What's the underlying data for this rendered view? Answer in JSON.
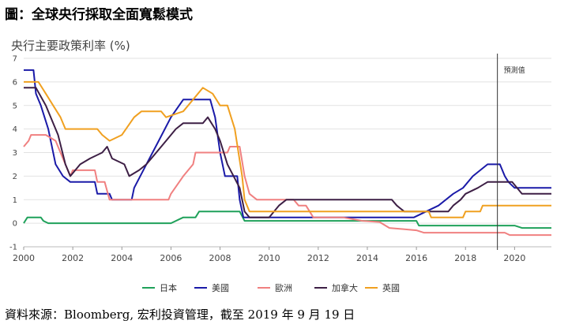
{
  "title": "圖：全球央行採取全面寬鬆模式",
  "source": "資料來源：Bloomberg, 宏利投資管理，截至 2019 年 9 月 19 日",
  "chart_data": {
    "type": "line",
    "title": "",
    "ylabel": "央行主要政策利率 (%)",
    "xlabel": "",
    "xlim": [
      2000,
      2021.5
    ],
    "ylim": [
      -1,
      7
    ],
    "yticks": [
      "-1",
      "0",
      "1",
      "2",
      "3",
      "4",
      "5",
      "6",
      "7"
    ],
    "xticks": [
      "2000",
      "2002",
      "2004",
      "2006",
      "2008",
      "2010",
      "2012",
      "2014",
      "2016",
      "2018",
      "2020"
    ],
    "annotation": {
      "x": 2019.3,
      "label": "預測值"
    },
    "grid": "horizontal",
    "legend": "bottom",
    "series": [
      {
        "name": "日本",
        "color": "#1fa15a",
        "points": [
          [
            2000,
            0
          ],
          [
            2000.15,
            0.25
          ],
          [
            2000.7,
            0.25
          ],
          [
            2000.8,
            0.1
          ],
          [
            2001.0,
            0
          ],
          [
            2006.0,
            0
          ],
          [
            2006.5,
            0.25
          ],
          [
            2007.0,
            0.25
          ],
          [
            2007.15,
            0.5
          ],
          [
            2008.8,
            0.5
          ],
          [
            2008.9,
            0.3
          ],
          [
            2009.0,
            0.1
          ],
          [
            2010.9,
            0.1
          ],
          [
            2011.0,
            0.1
          ],
          [
            2016.0,
            0.1
          ],
          [
            2016.1,
            -0.1
          ],
          [
            2020.0,
            -0.1
          ],
          [
            2020.3,
            -0.2
          ],
          [
            2021.5,
            -0.2
          ]
        ]
      },
      {
        "name": "美國",
        "color": "#1a1aa8",
        "points": [
          [
            2000,
            6.5
          ],
          [
            2000.4,
            6.5
          ],
          [
            2000.5,
            5.5
          ],
          [
            2000.7,
            5.0
          ],
          [
            2001.0,
            4.0
          ],
          [
            2001.3,
            2.5
          ],
          [
            2001.6,
            2.0
          ],
          [
            2001.9,
            1.75
          ],
          [
            2002.9,
            1.75
          ],
          [
            2003.0,
            1.25
          ],
          [
            2003.5,
            1.25
          ],
          [
            2003.6,
            1.0
          ],
          [
            2004.4,
            1.0
          ],
          [
            2004.5,
            1.5
          ],
          [
            2005.0,
            2.5
          ],
          [
            2005.5,
            3.5
          ],
          [
            2006.0,
            4.5
          ],
          [
            2006.5,
            5.25
          ],
          [
            2007.6,
            5.25
          ],
          [
            2007.8,
            4.5
          ],
          [
            2008.0,
            3.0
          ],
          [
            2008.2,
            2.0
          ],
          [
            2008.7,
            2.0
          ],
          [
            2008.8,
            1.0
          ],
          [
            2008.95,
            0.25
          ],
          [
            2015.9,
            0.25
          ],
          [
            2016.9,
            0.75
          ],
          [
            2017.5,
            1.25
          ],
          [
            2017.9,
            1.5
          ],
          [
            2018.3,
            2.0
          ],
          [
            2018.9,
            2.5
          ],
          [
            2019.4,
            2.5
          ],
          [
            2019.6,
            2.0
          ],
          [
            2019.75,
            1.75
          ],
          [
            2020.0,
            1.5
          ],
          [
            2021.5,
            1.5
          ]
        ]
      },
      {
        "name": "歐洲",
        "color": "#f08080",
        "points": [
          [
            2000,
            3.25
          ],
          [
            2000.2,
            3.5
          ],
          [
            2000.3,
            3.75
          ],
          [
            2000.9,
            3.75
          ],
          [
            2001.3,
            3.5
          ],
          [
            2001.6,
            2.75
          ],
          [
            2001.9,
            2.0
          ],
          [
            2002.0,
            2.25
          ],
          [
            2002.9,
            2.25
          ],
          [
            2003.0,
            1.75
          ],
          [
            2003.3,
            1.75
          ],
          [
            2003.5,
            1.0
          ],
          [
            2005.9,
            1.0
          ],
          [
            2006.0,
            1.25
          ],
          [
            2006.5,
            2.0
          ],
          [
            2006.9,
            2.5
          ],
          [
            2007.0,
            3.0
          ],
          [
            2008.3,
            3.0
          ],
          [
            2008.4,
            3.25
          ],
          [
            2008.8,
            3.25
          ],
          [
            2009.0,
            2.0
          ],
          [
            2009.2,
            1.25
          ],
          [
            2009.5,
            1.0
          ],
          [
            2011.0,
            1.0
          ],
          [
            2011.2,
            0.75
          ],
          [
            2011.5,
            0.75
          ],
          [
            2011.8,
            0.25
          ],
          [
            2012.0,
            0.25
          ],
          [
            2013.0,
            0.25
          ],
          [
            2013.8,
            0.1
          ],
          [
            2014.5,
            0.05
          ],
          [
            2014.9,
            -0.2
          ],
          [
            2016.0,
            -0.3
          ],
          [
            2016.3,
            -0.4
          ],
          [
            2019.6,
            -0.4
          ],
          [
            2019.8,
            -0.5
          ],
          [
            2021.5,
            -0.5
          ]
        ]
      },
      {
        "name": "加拿大",
        "color": "#3d1f45",
        "points": [
          [
            2000,
            5.75
          ],
          [
            2000.5,
            5.75
          ],
          [
            2000.9,
            5.0
          ],
          [
            2001.1,
            4.5
          ],
          [
            2001.4,
            3.75
          ],
          [
            2001.7,
            2.5
          ],
          [
            2001.9,
            2.0
          ],
          [
            2002.3,
            2.5
          ],
          [
            2002.7,
            2.75
          ],
          [
            2003.2,
            3.0
          ],
          [
            2003.4,
            3.25
          ],
          [
            2003.6,
            2.75
          ],
          [
            2004.1,
            2.5
          ],
          [
            2004.3,
            2.0
          ],
          [
            2004.7,
            2.25
          ],
          [
            2005.0,
            2.5
          ],
          [
            2005.4,
            3.0
          ],
          [
            2005.8,
            3.5
          ],
          [
            2006.2,
            4.0
          ],
          [
            2006.5,
            4.25
          ],
          [
            2007.3,
            4.25
          ],
          [
            2007.5,
            4.5
          ],
          [
            2007.8,
            4.0
          ],
          [
            2008.0,
            3.5
          ],
          [
            2008.3,
            2.5
          ],
          [
            2008.8,
            1.5
          ],
          [
            2009.0,
            0.5
          ],
          [
            2009.2,
            0.25
          ],
          [
            2010.0,
            0.25
          ],
          [
            2010.4,
            0.75
          ],
          [
            2010.7,
            1.0
          ],
          [
            2015.0,
            1.0
          ],
          [
            2015.2,
            0.75
          ],
          [
            2015.5,
            0.5
          ],
          [
            2017.3,
            0.5
          ],
          [
            2017.5,
            0.75
          ],
          [
            2017.8,
            1.0
          ],
          [
            2018.0,
            1.25
          ],
          [
            2018.5,
            1.5
          ],
          [
            2018.9,
            1.75
          ],
          [
            2019.9,
            1.75
          ],
          [
            2020.1,
            1.5
          ],
          [
            2020.3,
            1.25
          ],
          [
            2021.5,
            1.25
          ]
        ]
      },
      {
        "name": "英國",
        "color": "#f0a020",
        "points": [
          [
            2000,
            6.0
          ],
          [
            2000.6,
            6.0
          ],
          [
            2000.9,
            5.5
          ],
          [
            2001.2,
            5.0
          ],
          [
            2001.5,
            4.5
          ],
          [
            2001.7,
            4.0
          ],
          [
            2003.0,
            4.0
          ],
          [
            2003.2,
            3.75
          ],
          [
            2003.5,
            3.5
          ],
          [
            2004.0,
            3.75
          ],
          [
            2004.5,
            4.5
          ],
          [
            2004.8,
            4.75
          ],
          [
            2005.6,
            4.75
          ],
          [
            2005.8,
            4.5
          ],
          [
            2006.5,
            4.75
          ],
          [
            2006.9,
            5.25
          ],
          [
            2007.3,
            5.75
          ],
          [
            2007.7,
            5.5
          ],
          [
            2008.0,
            5.0
          ],
          [
            2008.3,
            5.0
          ],
          [
            2008.6,
            4.0
          ],
          [
            2008.9,
            2.0
          ],
          [
            2009.0,
            1.0
          ],
          [
            2009.2,
            0.5
          ],
          [
            2016.5,
            0.5
          ],
          [
            2016.6,
            0.25
          ],
          [
            2017.9,
            0.25
          ],
          [
            2018.0,
            0.5
          ],
          [
            2018.6,
            0.5
          ],
          [
            2018.7,
            0.75
          ],
          [
            2021.5,
            0.75
          ]
        ]
      }
    ]
  }
}
